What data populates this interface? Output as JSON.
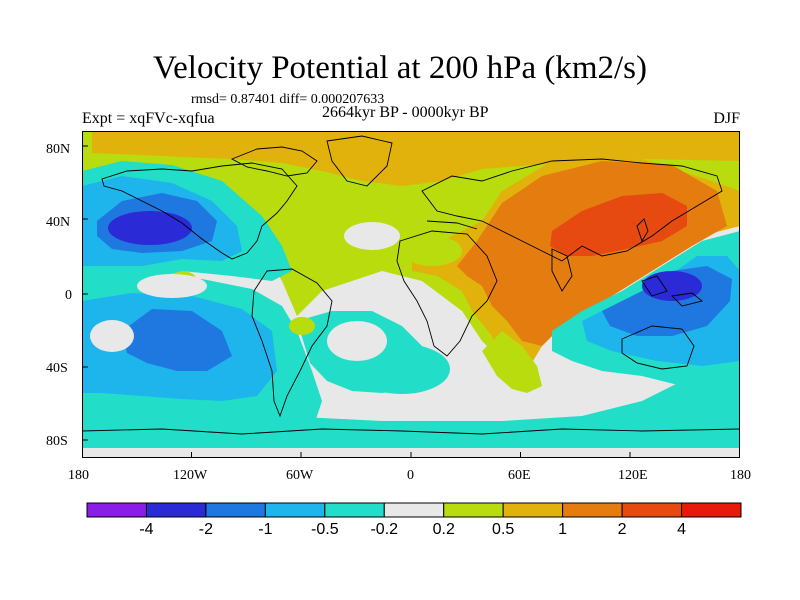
{
  "chart_data": {
    "type": "heatmap",
    "title": "Velocity Potential at 200 hPa (km2/s)",
    "stats_line": "rmsd= 0.87401 diff= 0.000207633",
    "experiment_label": "Expt = xqFVc-xqfua",
    "period_label": "2664kyr BP - 0000kyr BP",
    "season_label": "DJF",
    "x_tick_labels": [
      "180",
      "120W",
      "60W",
      "0",
      "60E",
      "120E",
      "180"
    ],
    "y_tick_labels": [
      "80N",
      "40N",
      "0",
      "40S",
      "80S"
    ],
    "x_range": [
      -180,
      180
    ],
    "y_range": [
      -90,
      90
    ],
    "levels": [
      "-4",
      "-2",
      "-1",
      "-0.5",
      "-0.2",
      "0.2",
      "0.5",
      "1",
      "2",
      "4"
    ],
    "level_colors": [
      "#8a1de6",
      "#2a2ad6",
      "#1e78e0",
      "#1eb4ec",
      "#22ddc8",
      "#e8e8e8",
      "#b8dc0e",
      "#e2b20c",
      "#e47c10",
      "#e64a10",
      "#e81a0c"
    ],
    "background_color": "#e8e8e8"
  }
}
